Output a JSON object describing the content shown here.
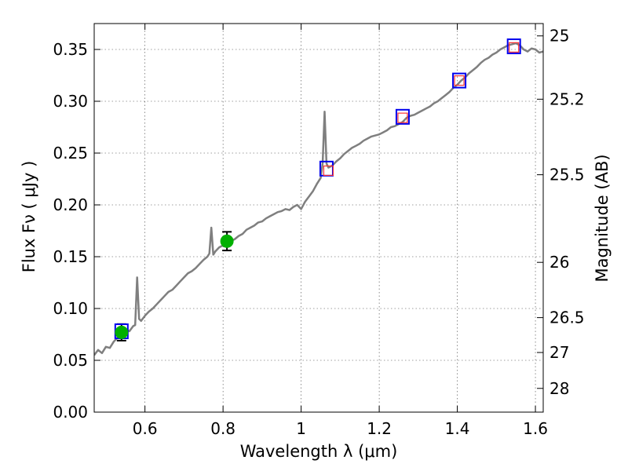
{
  "chart_data": {
    "type": "line",
    "xlabel": "Wavelength  λ (μm)",
    "ylabel": "Flux  Fν  ( μJy )",
    "ylabel2": "Magnitude (AB)",
    "xlim": [
      0.47,
      1.62
    ],
    "ylim": [
      0.0,
      0.375
    ],
    "grid": true,
    "x_ticks": [
      {
        "value": 0.6,
        "label": "0.6"
      },
      {
        "value": 0.8,
        "label": "0.8"
      },
      {
        "value": 1.0,
        "label": "1"
      },
      {
        "value": 1.2,
        "label": "1.2"
      },
      {
        "value": 1.4,
        "label": "1.4"
      },
      {
        "value": 1.6,
        "label": "1.6"
      }
    ],
    "y_ticks": [
      {
        "value": 0.0,
        "label": "0.00"
      },
      {
        "value": 0.05,
        "label": "0.05"
      },
      {
        "value": 0.1,
        "label": "0.10"
      },
      {
        "value": 0.15,
        "label": "0.15"
      },
      {
        "value": 0.2,
        "label": "0.20"
      },
      {
        "value": 0.25,
        "label": "0.25"
      },
      {
        "value": 0.3,
        "label": "0.30"
      },
      {
        "value": 0.35,
        "label": "0.35"
      }
    ],
    "mag_ticks": [
      {
        "mag": 25,
        "label": "25"
      },
      {
        "mag": 25.2,
        "label": "25.2"
      },
      {
        "mag": 25.5,
        "label": "25.5"
      },
      {
        "mag": 26,
        "label": "26"
      },
      {
        "mag": 26.5,
        "label": "26.5"
      },
      {
        "mag": 27,
        "label": "27"
      },
      {
        "mag": 28,
        "label": "28"
      }
    ],
    "spectrum": {
      "color": "#7f7f7f",
      "x": [
        0.47,
        0.48,
        0.49,
        0.5,
        0.51,
        0.52,
        0.53,
        0.54,
        0.55,
        0.56,
        0.57,
        0.575,
        0.58,
        0.585,
        0.59,
        0.6,
        0.61,
        0.62,
        0.63,
        0.64,
        0.65,
        0.66,
        0.67,
        0.68,
        0.69,
        0.7,
        0.71,
        0.72,
        0.73,
        0.74,
        0.75,
        0.76,
        0.765,
        0.77,
        0.775,
        0.78,
        0.79,
        0.8,
        0.81,
        0.82,
        0.83,
        0.84,
        0.85,
        0.86,
        0.87,
        0.88,
        0.89,
        0.9,
        0.91,
        0.92,
        0.93,
        0.94,
        0.95,
        0.96,
        0.97,
        0.98,
        0.99,
        1.0,
        1.01,
        1.02,
        1.03,
        1.04,
        1.05,
        1.055,
        1.06,
        1.065,
        1.07,
        1.08,
        1.09,
        1.1,
        1.11,
        1.12,
        1.13,
        1.14,
        1.15,
        1.16,
        1.17,
        1.18,
        1.19,
        1.2,
        1.21,
        1.22,
        1.23,
        1.24,
        1.25,
        1.26,
        1.27,
        1.28,
        1.29,
        1.3,
        1.31,
        1.32,
        1.33,
        1.34,
        1.35,
        1.36,
        1.37,
        1.38,
        1.39,
        1.4,
        1.41,
        1.42,
        1.43,
        1.44,
        1.45,
        1.46,
        1.47,
        1.48,
        1.49,
        1.5,
        1.51,
        1.52,
        1.53,
        1.54,
        1.55,
        1.56,
        1.57,
        1.58,
        1.59,
        1.6,
        1.61,
        1.62
      ],
      "y": [
        0.055,
        0.06,
        0.057,
        0.063,
        0.062,
        0.068,
        0.072,
        0.075,
        0.08,
        0.078,
        0.083,
        0.084,
        0.13,
        0.09,
        0.088,
        0.093,
        0.097,
        0.1,
        0.104,
        0.108,
        0.112,
        0.116,
        0.118,
        0.122,
        0.126,
        0.13,
        0.134,
        0.136,
        0.139,
        0.143,
        0.147,
        0.15,
        0.153,
        0.178,
        0.152,
        0.155,
        0.159,
        0.161,
        0.163,
        0.165,
        0.167,
        0.17,
        0.172,
        0.176,
        0.178,
        0.18,
        0.183,
        0.184,
        0.187,
        0.189,
        0.191,
        0.193,
        0.194,
        0.196,
        0.195,
        0.198,
        0.2,
        0.196,
        0.203,
        0.208,
        0.213,
        0.22,
        0.226,
        0.24,
        0.29,
        0.24,
        0.236,
        0.238,
        0.242,
        0.245,
        0.249,
        0.252,
        0.255,
        0.257,
        0.259,
        0.262,
        0.264,
        0.266,
        0.267,
        0.268,
        0.27,
        0.272,
        0.275,
        0.276,
        0.278,
        0.28,
        0.284,
        0.286,
        0.287,
        0.289,
        0.291,
        0.293,
        0.295,
        0.298,
        0.3,
        0.303,
        0.306,
        0.309,
        0.313,
        0.316,
        0.32,
        0.323,
        0.327,
        0.33,
        0.333,
        0.337,
        0.34,
        0.342,
        0.345,
        0.347,
        0.35,
        0.352,
        0.354,
        0.355,
        0.356,
        0.354,
        0.35,
        0.348,
        0.351,
        0.35,
        0.347,
        0.348
      ]
    },
    "filled_points": {
      "color": "#00b000",
      "errorbar_color": "#000000",
      "points": [
        {
          "x": 0.54,
          "y": 0.077,
          "yerr": 0.008
        },
        {
          "x": 0.81,
          "y": 0.165,
          "yerr": 0.009
        }
      ]
    },
    "model_squares_outer": {
      "color": "#0000ee",
      "points": [
        {
          "x": 0.54,
          "y": 0.078
        },
        {
          "x": 1.065,
          "y": 0.235
        },
        {
          "x": 1.26,
          "y": 0.285
        },
        {
          "x": 1.405,
          "y": 0.32
        },
        {
          "x": 1.545,
          "y": 0.353
        }
      ]
    },
    "model_squares_inner": {
      "color": "#ff3333",
      "points": [
        {
          "x": 1.07,
          "y": 0.233
        },
        {
          "x": 1.26,
          "y": 0.284
        },
        {
          "x": 1.405,
          "y": 0.32
        },
        {
          "x": 1.545,
          "y": 0.352
        }
      ]
    }
  }
}
